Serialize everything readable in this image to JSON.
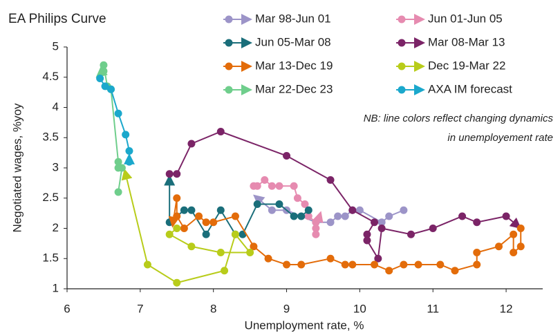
{
  "chart_data": {
    "type": "line",
    "title": "EA Philips Curve",
    "x_label": "Unemployment rate, %",
    "y_label": "Negotiated wages, %yoy",
    "annotation": [
      "NB: line colors reflect changing dynamics",
      "in unemployement rate"
    ],
    "xlim": [
      6,
      12.5
    ],
    "xticks": [
      6,
      7,
      8,
      9,
      10,
      11,
      12
    ],
    "ylim": [
      1,
      5
    ],
    "yticks": [
      1,
      1.5,
      2,
      2.5,
      3,
      3.5,
      4,
      4.5,
      5
    ],
    "series": [
      {
        "name": "Mar 98-Jun 01",
        "color": "#9c94c8",
        "x": [
          10.6,
          10.4,
          10.3,
          10.0,
          9.9,
          9.8,
          9.7,
          9.6,
          9.4,
          9.0,
          8.8,
          8.6
        ],
        "values": [
          2.3,
          2.2,
          2.1,
          2.3,
          2.3,
          2.2,
          2.2,
          2.1,
          2.1,
          2.3,
          2.3,
          2.5
        ]
      },
      {
        "name": "Jun 01-Jun 05",
        "color": "#e68bb0",
        "x": [
          8.55,
          8.6,
          8.7,
          8.8,
          8.9,
          9.1,
          9.15,
          9.25,
          9.3,
          9.4,
          9.4,
          9.4,
          9.45
        ],
        "values": [
          2.7,
          2.7,
          2.8,
          2.7,
          2.7,
          2.7,
          2.5,
          2.4,
          2.2,
          2.1,
          1.9,
          2.0,
          2.2
        ]
      },
      {
        "name": "Jun 05-Mar 08",
        "color": "#1a6e7a",
        "x": [
          9.3,
          9.2,
          9.1,
          8.9,
          8.6,
          8.4,
          8.3,
          8.1,
          7.9,
          7.7,
          7.6,
          7.4,
          7.4
        ],
        "values": [
          2.3,
          2.2,
          2.2,
          2.4,
          2.4,
          1.9,
          1.9,
          2.3,
          1.9,
          2.3,
          2.3,
          2.1,
          2.8
        ]
      },
      {
        "name": "Mar 08-Mar 13",
        "color": "#7b2467",
        "x": [
          7.4,
          7.5,
          7.7,
          8.1,
          9.0,
          9.6,
          9.9,
          10.2,
          10.1,
          10.1,
          10.25,
          10.3,
          10.7,
          11.0,
          11.4,
          11.6,
          12.0,
          12.15
        ],
        "values": [
          2.9,
          2.9,
          3.4,
          3.6,
          3.2,
          2.8,
          2.3,
          2.1,
          1.9,
          1.8,
          1.5,
          2.0,
          1.9,
          2.0,
          2.2,
          2.1,
          2.2,
          2.05
        ]
      },
      {
        "name": "Mar 13-Dec 19",
        "color": "#e36c0a",
        "x": [
          12.2,
          12.2,
          12.1,
          12.1,
          11.9,
          11.6,
          11.6,
          11.3,
          11.1,
          10.8,
          10.6,
          10.4,
          10.2,
          9.9,
          9.8,
          9.6,
          9.2,
          9.0,
          8.75,
          8.55,
          8.3,
          8.0,
          7.9,
          7.8,
          7.6,
          7.5,
          7.5,
          7.45
        ],
        "values": [
          2.0,
          1.7,
          1.6,
          1.9,
          1.7,
          1.6,
          1.4,
          1.3,
          1.4,
          1.4,
          1.4,
          1.3,
          1.4,
          1.4,
          1.4,
          1.5,
          1.4,
          1.4,
          1.5,
          1.7,
          2.2,
          2.1,
          2.1,
          2.2,
          2.0,
          2.2,
          2.5,
          2.1
        ]
      },
      {
        "name": "Dec 19-Mar 22",
        "color": "#b8cc1a",
        "x": [
          7.5,
          7.4,
          7.7,
          8.1,
          8.5,
          8.3,
          8.15,
          7.5,
          7.1,
          6.8
        ],
        "values": [
          2.0,
          1.9,
          1.7,
          1.6,
          1.6,
          1.9,
          1.3,
          1.1,
          1.4,
          2.9
        ]
      },
      {
        "name": "Mar 22-Dec 23",
        "color": "#6fce8c",
        "x": [
          6.7,
          6.75,
          6.7,
          6.7,
          6.6,
          6.55,
          6.5,
          6.5,
          6.45
        ],
        "values": [
          2.6,
          3.0,
          3.0,
          3.1,
          4.3,
          4.35,
          4.7,
          4.6,
          4.55
        ]
      },
      {
        "name": "AXA IM forecast",
        "color": "#1ba8cc",
        "x": [
          6.45,
          6.52,
          6.6,
          6.7,
          6.8,
          6.85,
          6.85,
          6.85
        ],
        "values": [
          4.48,
          4.35,
          4.3,
          3.9,
          3.55,
          3.28,
          3.1,
          3.15
        ]
      }
    ]
  }
}
